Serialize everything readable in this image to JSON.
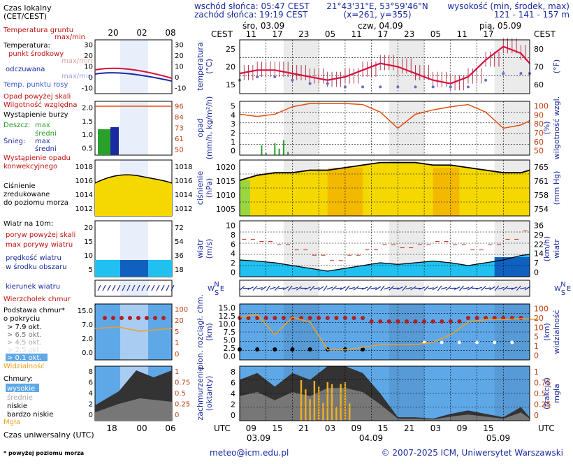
{
  "header": {
    "sunrise": "wschód słońca: 05:47 CEST",
    "sunset": "zachód słońca: 19:19 CEST",
    "coords": "21°43'31\"E, 53°59'46\"N",
    "grid": "(x=261,  y=355)",
    "elev_label": "wysokość (min, środek, max)",
    "elev_values": "121 - 141 - 157 m",
    "day1": "śro, 03.09",
    "day2": "czw, 04.09",
    "day3": "pią, 05.09",
    "cest": "CEST",
    "utc": "UTC"
  },
  "top_hours": [
    "11",
    "17",
    "23",
    "05",
    "11",
    "17",
    "23",
    "05",
    "11",
    "17"
  ],
  "bottom_hours": [
    "09",
    "15",
    "21",
    "03",
    "09",
    "15",
    "21",
    "03",
    "09",
    "15"
  ],
  "bottom_dates": [
    "03.09",
    "04.09",
    "05.09"
  ],
  "legend": {
    "czas_lokalny": "Czas lokalny",
    "czas_lokalny2": "(CET/CEST)",
    "legend_top_ticks": [
      "20",
      "02",
      "08"
    ],
    "legend_bottom_ticks": [
      "18",
      "00",
      "06"
    ],
    "temp_gruntu": "Temperatura gruntu",
    "max_min": "max/min",
    "temperatura": "Temperatura:",
    "punkt_srodkowy": "punkt środkowy",
    "max_min2": "max/min",
    "odczuwana": "odczuwana",
    "max_min3": "max/min",
    "temp_punktu_rosy": "Temp. punktu rosy",
    "opad_powyzej": "Opad powyżej skali",
    "wilgotnosc": "Wilgotność względna",
    "wystapienie_burzy": "Wystąpienie burzy",
    "deszcz": "Deszcz:",
    "max": "max",
    "sredni": "średni",
    "snieg": "Śnieg:",
    "wystapienie_opadu": "Wystąpienie opadu",
    "konwekcyjnego": "konwekcyjnego",
    "cisnienie": "Ciśnienie",
    "zredukowane": "zredukowane",
    "do_poziomu": "do poziomu morza",
    "wiatr_10m": "Wiatr na 10m:",
    "poryw_powyzej": "poryw powyżej skali",
    "max_porywy": "max porywy wiatru",
    "predkosc": "prędkość wiatru",
    "w_srodku": "w środku obszaru",
    "kierunek": "kierunek wiatru",
    "wierzcholek": "Wierzchołek chmur",
    "podstawa": "Podstawa chmur*",
    "o_pokryciu": "o pokryciu",
    "okt79": "> 7.9 okt.",
    "okt65": "> 6.5 okt.",
    "okt45": "> 4.5 okt.",
    "okt25": "> 2.5 okt.",
    "okt01": "> 0.1 okt.",
    "widzialnosc": "Widzialność",
    "chmury": "Chmury:",
    "wysokie": "wysokie",
    "srednie": "średnie",
    "niskie": "niskie",
    "bardzo_niskie": "bardzo niskie",
    "mgla": "Mgła",
    "czas_uniwersalny": "Czas uniwersalny (UTC)",
    "footnote": "* powyżej poziomu morza"
  },
  "panels": {
    "temp": {
      "label_l": "temperatura",
      "unit_l": "(°C)",
      "label_r": "(°F)",
      "ticks_l": [
        "15",
        "20",
        "25"
      ],
      "ticks_r": [
        "60",
        "70",
        "80"
      ],
      "leg_ticks_l": [
        "-10",
        "0",
        "10",
        "20",
        "30"
      ],
      "leg_ticks_r": [
        "-10",
        "0",
        "10",
        "20",
        "30"
      ]
    },
    "precip": {
      "label_l": "opad",
      "unit_l": "(mm/h, kg/m²/h)",
      "label_r": "wilgotność wzgl.",
      "unit_r": "(%)",
      "ticks_l": [
        "0",
        "1",
        "2",
        "3",
        "4",
        "5"
      ],
      "ticks_r": [
        "50",
        "60",
        "70",
        "80",
        "90",
        "100"
      ],
      "leg_ticks_l": [
        "0.5",
        "1.0",
        "1.5",
        "2.0"
      ],
      "leg_ticks_r": [
        "50",
        "61",
        "73",
        "84",
        "96"
      ]
    },
    "pressure": {
      "label_l": "ciśnienie",
      "unit_l": "(hPa)",
      "label_r": "(mm Hg)",
      "ticks_l": [
        "1005",
        "1010",
        "1015",
        "1020"
      ],
      "ticks_r": [
        "754",
        "758",
        "761",
        "765"
      ],
      "leg_ticks_l": [
        "1012",
        "1014",
        "1016",
        "1018"
      ],
      "leg_ticks_r": [
        "1012",
        "1014",
        "1016",
        "1018"
      ]
    },
    "wind": {
      "label_l": "wiatr",
      "unit_l": "(m/s)",
      "label_r": "wiatr",
      "unit_r": "(km/h)",
      "ticks_l": [
        "0",
        "2",
        "4",
        "6",
        "8",
        "10"
      ],
      "ticks_r": [
        "0",
        "7",
        "14",
        "22",
        "29",
        "36"
      ],
      "leg_ticks_l": [
        "5",
        "10",
        "15",
        "20"
      ],
      "leg_ticks_r": [
        "18",
        "36",
        "54",
        "72"
      ]
    },
    "winddir": {
      "compass_n": "N",
      "compass_w": "W",
      "compass_e": "E",
      "compass_s": "S"
    },
    "cloudbase": {
      "label_l": "pion. rozciągł. chm.",
      "unit_l": "(km)",
      "label_r": "widzialność",
      "unit_r": "(km)",
      "ticks_l": [
        "0.0",
        "2.5",
        "5.0",
        "7.5",
        "10.0",
        "12.5",
        "15.0"
      ],
      "ticks_r": [
        "0",
        "1",
        "5",
        "10",
        "20",
        "100"
      ],
      "leg_ticks_l": [
        "0.0",
        "2.0",
        "7.0",
        "15.0"
      ],
      "leg_ticks_r": [
        "0",
        "1",
        "5",
        "20",
        "100"
      ]
    },
    "cloud": {
      "label_l": "zachmurzenie",
      "unit_l": "(oktanty)",
      "label_r": "mgła",
      "unit_r": "(frakcja)",
      "ticks_l": [
        "0",
        "2",
        "4",
        "6",
        "8"
      ],
      "ticks_r": [
        "0",
        "0.25",
        "0.5",
        "0.75",
        "1"
      ],
      "leg_ticks_l": [
        "0",
        "2",
        "4",
        "6",
        "8"
      ],
      "leg_ticks_r": [
        "0",
        "0.25",
        "0.5",
        "0.75",
        "1"
      ]
    }
  },
  "footer": {
    "email": "meteo@icm.edu.pl",
    "copyright": "© 2007-2025 ICM, Uniwersytet Warszawski"
  },
  "chart_data": [
    {
      "type": "line",
      "title": "temperatura",
      "ylabel": "(°C)",
      "ylim": [
        12,
        28
      ],
      "x": [
        0,
        4,
        8,
        12,
        16,
        20,
        24,
        28,
        32,
        36,
        40,
        44,
        48,
        52,
        56,
        60,
        64,
        66
      ],
      "series": [
        {
          "values": [
            18,
            19,
            19,
            18,
            17,
            16,
            17,
            19,
            21,
            20,
            18,
            16,
            15,
            17,
            22,
            26,
            24,
            21
          ]
        },
        {
          "values": [
            16,
            17,
            17,
            16,
            15,
            15,
            14,
            14,
            14,
            14,
            14,
            14,
            14,
            14,
            16,
            18,
            18,
            18
          ]
        }
      ]
    },
    {
      "type": "line",
      "title": "wilgotność wzgl.",
      "ylabel": "(%)",
      "ylim": [
        50,
        100
      ],
      "x": [
        0,
        4,
        8,
        12,
        16,
        20,
        24,
        28,
        32,
        36,
        40,
        44,
        48,
        52,
        56,
        60,
        64,
        66
      ],
      "values": [
        88,
        86,
        88,
        95,
        98,
        98,
        98,
        97,
        90,
        75,
        88,
        92,
        95,
        97,
        90,
        75,
        78,
        82
      ]
    },
    {
      "type": "line",
      "title": "ciśnienie",
      "ylabel": "(hPa)",
      "ylim": [
        1000,
        1022
      ],
      "x": [
        0,
        4,
        8,
        12,
        16,
        20,
        24,
        28,
        32,
        36,
        40,
        44,
        48,
        52,
        56,
        60,
        64,
        66
      ],
      "values": [
        1014,
        1016,
        1017,
        1017,
        1018,
        1018,
        1019,
        1020,
        1021,
        1021,
        1021,
        1020,
        1020,
        1019,
        1018,
        1017,
        1017,
        1018
      ]
    },
    {
      "type": "area",
      "title": "wiatr",
      "ylabel": "(m/s)",
      "ylim": [
        0,
        10
      ],
      "x": [
        0,
        4,
        8,
        12,
        16,
        20,
        24,
        28,
        32,
        36,
        40,
        44,
        48,
        52,
        56,
        60,
        64,
        66
      ],
      "values": [
        3,
        2.8,
        2.5,
        2,
        1.5,
        1,
        1.5,
        2,
        2.5,
        2.2,
        2.5,
        2.8,
        2.5,
        2,
        2.5,
        3,
        3.8,
        4
      ]
    },
    {
      "type": "area",
      "title": "zachmurzenie",
      "ylabel": "(oktanty)",
      "ylim": [
        0,
        8
      ],
      "x": [
        0,
        4,
        8,
        12,
        16,
        20,
        24,
        28,
        32,
        36,
        40,
        44,
        48,
        52,
        56,
        60,
        64,
        66
      ],
      "values": [
        6,
        7,
        5,
        7,
        6,
        8,
        8,
        7,
        4,
        0.5,
        0.5,
        0.3,
        1,
        1.5,
        1,
        0.5,
        2,
        0.5
      ]
    }
  ]
}
